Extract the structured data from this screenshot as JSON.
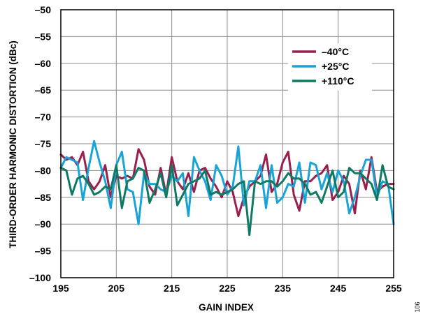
{
  "chart_data": {
    "type": "line",
    "xlabel": "GAIN INDEX",
    "ylabel": "THIRD-ORDER HARMONIC DISTORTION (dBc)",
    "xlim": [
      195,
      255
    ],
    "ylim": [
      -100,
      -50
    ],
    "x_ticks": [
      195,
      205,
      215,
      225,
      235,
      245,
      255
    ],
    "y_ticks": [
      -50,
      -55,
      -60,
      -65,
      -70,
      -75,
      -80,
      -85,
      -90,
      -95,
      -100
    ],
    "x_tick_labels": [
      "195",
      "205",
      "215",
      "225",
      "235",
      "245",
      "255"
    ],
    "y_tick_labels": [
      "–50",
      "–55",
      "–60",
      "–65",
      "–70",
      "–75",
      "–80",
      "–85",
      "–90",
      "–95",
      "–100"
    ],
    "grid": true,
    "legend_position": "top-right",
    "x": [
      195,
      196,
      197,
      198,
      199,
      200,
      201,
      202,
      203,
      204,
      205,
      206,
      207,
      208,
      209,
      210,
      211,
      212,
      213,
      214,
      215,
      216,
      217,
      218,
      219,
      220,
      221,
      222,
      223,
      224,
      225,
      226,
      227,
      228,
      229,
      230,
      231,
      232,
      233,
      234,
      235,
      236,
      237,
      238,
      239,
      240,
      241,
      242,
      243,
      244,
      245,
      246,
      247,
      248,
      249,
      250,
      251,
      252,
      253,
      254,
      255
    ],
    "series": [
      {
        "name": "–40°C",
        "color": "#98204e",
        "values": [
          -77.0,
          -78.0,
          -77.5,
          -79.0,
          -76.5,
          -82.0,
          -83.5,
          -82.0,
          -79.0,
          -85.0,
          -81.0,
          -81.5,
          -81.0,
          -81.5,
          -76.0,
          -78.0,
          -83.0,
          -84.5,
          -79.5,
          -84.5,
          -77.5,
          -82.0,
          -83.5,
          -80.5,
          -84.0,
          -80.0,
          -79.5,
          -81.5,
          -83.0,
          -85.0,
          -82.0,
          -84.0,
          -88.5,
          -85.0,
          -83.0,
          -82.0,
          -81.0,
          -77.0,
          -84.0,
          -82.5,
          -78.5,
          -76.5,
          -84.5,
          -87.5,
          -82.0,
          -82.0,
          -81.0,
          -80.5,
          -79.0,
          -85.5,
          -84.0,
          -81.0,
          -82.5,
          -88.0,
          -80.0,
          -83.5,
          -77.5,
          -84.0,
          -83.0,
          -82.5,
          -82.5
        ]
      },
      {
        "name": "+25°C",
        "color": "#1aa3d6",
        "values": [
          -79.5,
          -77.5,
          -78.0,
          -78.5,
          -85.5,
          -79.5,
          -74.5,
          -78.5,
          -82.0,
          -87.0,
          -79.0,
          -76.5,
          -83.5,
          -84.0,
          -90.0,
          -80.5,
          -82.5,
          -82.5,
          -83.5,
          -84.0,
          -81.0,
          -82.0,
          -80.5,
          -88.5,
          -77.5,
          -80.0,
          -82.0,
          -85.5,
          -79.0,
          -81.0,
          -84.5,
          -83.0,
          -75.5,
          -86.5,
          -82.0,
          -82.0,
          -79.0,
          -87.0,
          -79.0,
          -86.0,
          -85.0,
          -82.5,
          -83.0,
          -78.5,
          -86.0,
          -78.5,
          -79.0,
          -83.5,
          -80.5,
          -84.0,
          -80.0,
          -82.0,
          -88.0,
          -85.0,
          -81.0,
          -78.0,
          -78.0,
          -85.0,
          -82.0,
          -82.5,
          -90.0
        ]
      },
      {
        "name": "+110°C",
        "color": "#0f7a64",
        "values": [
          -79.5,
          -80.0,
          -84.5,
          -81.5,
          -81.0,
          -82.5,
          -84.5,
          -84.0,
          -83.0,
          -83.5,
          -79.0,
          -87.0,
          -82.0,
          -81.5,
          -79.5,
          -80.0,
          -86.0,
          -83.5,
          -80.5,
          -85.0,
          -79.0,
          -86.5,
          -84.5,
          -82.5,
          -82.0,
          -81.5,
          -80.0,
          -84.5,
          -84.0,
          -84.5,
          -84.0,
          -83.5,
          -82.5,
          -82.0,
          -92.0,
          -82.0,
          -82.5,
          -82.0,
          -82.0,
          -83.0,
          -82.0,
          -80.5,
          -81.5,
          -81.5,
          -82.5,
          -84.5,
          -84.0,
          -86.0,
          -83.0,
          -80.0,
          -85.0,
          -84.0,
          -79.5,
          -80.5,
          -80.5,
          -81.5,
          -82.5,
          -85.5,
          -79.0,
          -83.0,
          -83.5
        ]
      }
    ],
    "figure_id": "106"
  }
}
